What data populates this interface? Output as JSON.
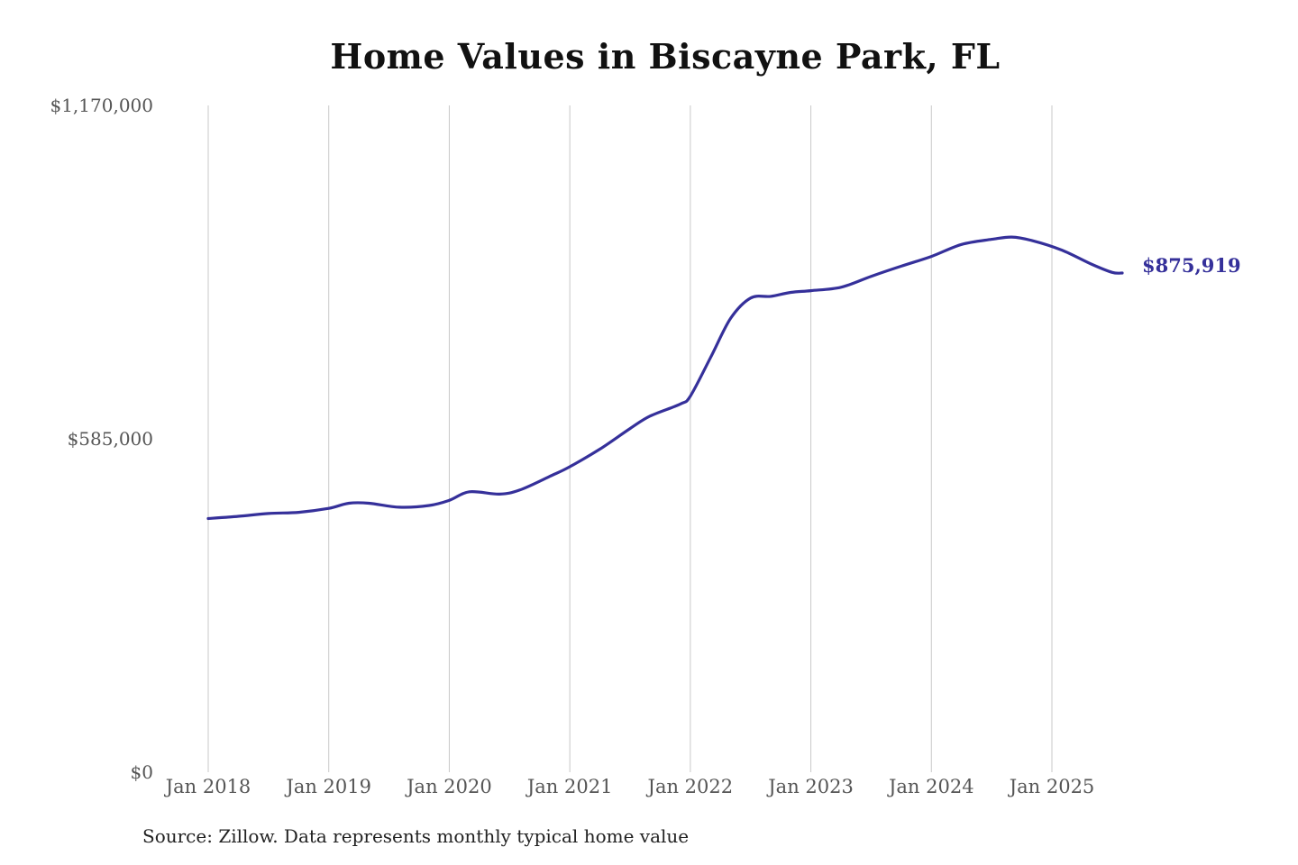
{
  "chart_data": {
    "type": "line",
    "title": "Home Values in Biscayne Park, FL",
    "xlabel": "",
    "ylabel": "",
    "ylim": [
      0,
      1170000
    ],
    "y_ticks": [
      {
        "value": 0,
        "label": "$0"
      },
      {
        "value": 585000,
        "label": "$585,000"
      },
      {
        "value": 1170000,
        "label": "$1,170,000"
      }
    ],
    "x_ticks": [
      {
        "value": "2018-01",
        "label": "Jan 2018"
      },
      {
        "value": "2019-01",
        "label": "Jan 2019"
      },
      {
        "value": "2020-01",
        "label": "Jan 2020"
      },
      {
        "value": "2021-01",
        "label": "Jan 2021"
      },
      {
        "value": "2022-01",
        "label": "Jan 2022"
      },
      {
        "value": "2023-01",
        "label": "Jan 2023"
      },
      {
        "value": "2024-01",
        "label": "Jan 2024"
      },
      {
        "value": "2025-01",
        "label": "Jan 2025"
      }
    ],
    "x_range": [
      "2018-01",
      "2025-08"
    ],
    "grid": {
      "vertical": true,
      "horizontal": false
    },
    "legend": "none",
    "line_color": "#35309a",
    "end_label": "$875,919",
    "series": [
      {
        "points": [
          {
            "x": "2018-01",
            "y": 445000
          },
          {
            "x": "2018-04",
            "y": 449000
          },
          {
            "x": "2018-07",
            "y": 454000
          },
          {
            "x": "2018-10",
            "y": 456000
          },
          {
            "x": "2019-01",
            "y": 463000
          },
          {
            "x": "2019-03",
            "y": 472000
          },
          {
            "x": "2019-05",
            "y": 472000
          },
          {
            "x": "2019-08",
            "y": 465000
          },
          {
            "x": "2019-11",
            "y": 468000
          },
          {
            "x": "2020-01",
            "y": 477000
          },
          {
            "x": "2020-03",
            "y": 492000
          },
          {
            "x": "2020-06",
            "y": 488000
          },
          {
            "x": "2020-08",
            "y": 495000
          },
          {
            "x": "2020-11",
            "y": 519000
          },
          {
            "x": "2021-01",
            "y": 536000
          },
          {
            "x": "2021-04",
            "y": 567000
          },
          {
            "x": "2021-07",
            "y": 603000
          },
          {
            "x": "2021-09",
            "y": 625000
          },
          {
            "x": "2021-12",
            "y": 646000
          },
          {
            "x": "2022-01",
            "y": 660000
          },
          {
            "x": "2022-03",
            "y": 727000
          },
          {
            "x": "2022-05",
            "y": 796000
          },
          {
            "x": "2022-07",
            "y": 832000
          },
          {
            "x": "2022-09",
            "y": 835000
          },
          {
            "x": "2022-11",
            "y": 842000
          },
          {
            "x": "2023-01",
            "y": 845000
          },
          {
            "x": "2023-04",
            "y": 851000
          },
          {
            "x": "2023-07",
            "y": 870000
          },
          {
            "x": "2023-10",
            "y": 888000
          },
          {
            "x": "2024-01",
            "y": 905000
          },
          {
            "x": "2024-04",
            "y": 926000
          },
          {
            "x": "2024-07",
            "y": 935000
          },
          {
            "x": "2024-09",
            "y": 939000
          },
          {
            "x": "2024-11",
            "y": 933000
          },
          {
            "x": "2025-02",
            "y": 916000
          },
          {
            "x": "2025-05",
            "y": 891000
          },
          {
            "x": "2025-07",
            "y": 877000
          },
          {
            "x": "2025-08",
            "y": 875919
          }
        ]
      }
    ]
  },
  "source_note": "Source: Zillow. Data represents monthly typical home value"
}
